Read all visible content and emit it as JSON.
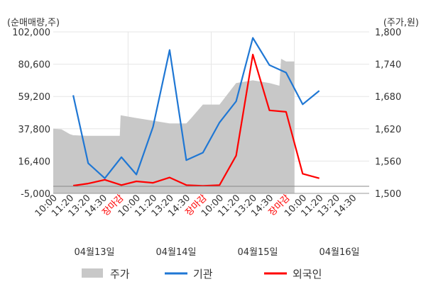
{
  "chart_data": {
    "type": "line",
    "left_axis": {
      "label": "(순매매량,주)",
      "ticks": [
        "102,000",
        "80,600",
        "59,200",
        "37,800",
        "16,400",
        "-5,000"
      ],
      "range": [
        -5000,
        102000
      ]
    },
    "right_axis": {
      "label": "(주가,원)",
      "ticks": [
        "1,800",
        "1,740",
        "1,680",
        "1,620",
        "1,560",
        "1,500"
      ],
      "range": [
        1500,
        1800
      ]
    },
    "x_ticks": [
      {
        "label": "10:00",
        "color": "#333333"
      },
      {
        "label": "11:20",
        "color": "#333333"
      },
      {
        "label": "13:20",
        "color": "#333333"
      },
      {
        "label": "14:30",
        "color": "#333333"
      },
      {
        "label": "장마감",
        "color": "#ff0000"
      },
      {
        "label": "10:00",
        "color": "#333333"
      },
      {
        "label": "11:20",
        "color": "#333333"
      },
      {
        "label": "13:20",
        "color": "#333333"
      },
      {
        "label": "14:30",
        "color": "#333333"
      },
      {
        "label": "장마감",
        "color": "#ff0000"
      },
      {
        "label": "10:00",
        "color": "#333333"
      },
      {
        "label": "11:20",
        "color": "#333333"
      },
      {
        "label": "13:20",
        "color": "#333333"
      },
      {
        "label": "14:30",
        "color": "#333333"
      },
      {
        "label": "장마감",
        "color": "#ff0000"
      },
      {
        "label": "10:00",
        "color": "#333333"
      },
      {
        "label": "11:20",
        "color": "#333333"
      },
      {
        "label": "13:20",
        "color": "#333333"
      },
      {
        "label": "14:30",
        "color": "#333333"
      }
    ],
    "day_labels": [
      "04월13일",
      "04월14일",
      "04월15일",
      "04월16일"
    ],
    "series": [
      {
        "name": "주가",
        "kind": "area",
        "axis": "right",
        "color": "#c8c8c8",
        "points": [
          [
            0,
            1620
          ],
          [
            0.5,
            1619
          ],
          [
            1,
            1610
          ],
          [
            1.2,
            1608
          ],
          [
            2,
            1607
          ],
          [
            3,
            1607
          ],
          [
            4,
            1607
          ],
          [
            4.05,
            1645
          ],
          [
            5,
            1640
          ],
          [
            6,
            1635
          ],
          [
            7,
            1630
          ],
          [
            8,
            1630
          ],
          [
            8.3,
            1640
          ],
          [
            9,
            1665
          ],
          [
            10,
            1665
          ],
          [
            11,
            1705
          ],
          [
            12,
            1710
          ],
          [
            13,
            1705
          ],
          [
            13.6,
            1700
          ],
          [
            13.7,
            1750
          ],
          [
            14,
            1745
          ],
          [
            14.5,
            1745
          ]
        ]
      },
      {
        "name": "기관",
        "kind": "line",
        "axis": "left",
        "color": "#1f77d4",
        "points": [
          [
            1.2,
            60000
          ],
          [
            2.1,
            15000
          ],
          [
            3.1,
            5000
          ],
          [
            4.1,
            19000
          ],
          [
            5.0,
            7500
          ],
          [
            6.0,
            39000
          ],
          [
            7.0,
            90000
          ],
          [
            8.0,
            17000
          ],
          [
            9.0,
            22000
          ],
          [
            10.0,
            42000
          ],
          [
            11.0,
            56000
          ],
          [
            12.0,
            98000
          ],
          [
            13.0,
            80000
          ],
          [
            14.0,
            75000
          ],
          [
            15.0,
            54000
          ],
          [
            16.0,
            63000
          ]
        ]
      },
      {
        "name": "외국인",
        "kind": "line",
        "axis": "left",
        "color": "#ff0000",
        "points": [
          [
            1.2,
            100
          ],
          [
            2.1,
            1500
          ],
          [
            3.1,
            4000
          ],
          [
            4.1,
            500
          ],
          [
            5.0,
            3000
          ],
          [
            6.0,
            2000
          ],
          [
            7.0,
            5500
          ],
          [
            8.0,
            500
          ],
          [
            9.0,
            0
          ],
          [
            10.0,
            500
          ],
          [
            11.0,
            20000
          ],
          [
            12.0,
            87000
          ],
          [
            13.0,
            50000
          ],
          [
            14.0,
            49000
          ],
          [
            15.0,
            8000
          ],
          [
            16.0,
            5000
          ]
        ]
      }
    ],
    "legend": [
      {
        "label": "주가",
        "color": "#c8c8c8",
        "kind": "box"
      },
      {
        "label": "기관",
        "color": "#1f77d4",
        "kind": "line"
      },
      {
        "label": "외국인",
        "color": "#ff0000",
        "kind": "line"
      }
    ],
    "grid": true,
    "legend_position": "bottom"
  }
}
